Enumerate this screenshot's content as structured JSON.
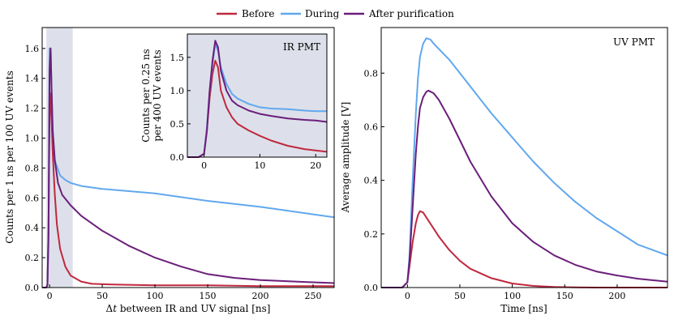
{
  "legend": {
    "items": [
      {
        "label": "Before",
        "color": "#c0283e"
      },
      {
        "label": "During",
        "color": "#61a8ee"
      },
      {
        "label": "After purification",
        "color": "#6b1e7a"
      }
    ]
  },
  "chart_data": [
    {
      "id": "left",
      "type": "line",
      "title": "",
      "xlabel": "Δt between IR and UV signal [ns]",
      "xlabel_italic_part": "t",
      "ylabel": "Counts per 1 ns per 100 UV events",
      "xlim": [
        -7,
        270
      ],
      "ylim": [
        0,
        1.74
      ],
      "xticks": [
        0,
        50,
        100,
        150,
        200,
        250
      ],
      "yticks": [
        0.0,
        0.2,
        0.4,
        0.6,
        0.8,
        1.0,
        1.2,
        1.4,
        1.6
      ],
      "shaded_region": [
        -3,
        22
      ],
      "series": [
        {
          "name": "Before",
          "x": [
            -7,
            -3,
            -2,
            -1,
            0,
            1,
            2,
            3,
            5,
            7,
            10,
            15,
            20,
            30,
            40,
            60,
            100,
            150,
            200,
            270
          ],
          "y": [
            0,
            0,
            0.02,
            0.4,
            1.15,
            1.3,
            1.1,
            0.9,
            0.62,
            0.42,
            0.26,
            0.14,
            0.08,
            0.04,
            0.025,
            0.02,
            0.015,
            0.015,
            0.01,
            0.01
          ]
        },
        {
          "name": "During",
          "x": [
            -7,
            -3,
            -2,
            -1,
            0,
            1,
            2,
            3,
            5,
            10,
            15,
            20,
            25,
            30,
            50,
            100,
            150,
            200,
            250,
            270
          ],
          "y": [
            0,
            0,
            0.02,
            0.3,
            1.6,
            1.6,
            1.3,
            1.05,
            0.85,
            0.75,
            0.72,
            0.7,
            0.69,
            0.68,
            0.66,
            0.63,
            0.58,
            0.54,
            0.49,
            0.47
          ]
        },
        {
          "name": "After purification",
          "x": [
            -7,
            -3,
            -2,
            -1,
            0,
            1,
            2,
            3,
            5,
            8,
            12,
            20,
            30,
            50,
            75,
            100,
            125,
            150,
            175,
            200,
            250,
            270
          ],
          "y": [
            0,
            0,
            0.02,
            0.35,
            1.45,
            1.6,
            1.3,
            1.05,
            0.85,
            0.7,
            0.62,
            0.55,
            0.48,
            0.38,
            0.28,
            0.2,
            0.14,
            0.09,
            0.065,
            0.05,
            0.035,
            0.03
          ]
        }
      ]
    },
    {
      "id": "inset",
      "type": "line",
      "title": "IR PMT",
      "xlabel": "",
      "ylabel": "Counts per 0.25 ns per 400 UV events",
      "ylabel_lines": [
        "Counts per 0.25 ns",
        "per 400 UV events"
      ],
      "xlim": [
        -3,
        22
      ],
      "ylim": [
        0,
        1.85
      ],
      "xticks": [
        0,
        10,
        20
      ],
      "yticks": [
        0.0,
        0.5,
        1.0,
        1.5
      ],
      "series": [
        {
          "name": "Before",
          "x": [
            -3,
            -1,
            0,
            0.5,
            1,
            1.5,
            2,
            2.5,
            3,
            4,
            5,
            6,
            8,
            10,
            12,
            15,
            18,
            20,
            22
          ],
          "y": [
            0,
            0,
            0.05,
            0.4,
            0.9,
            1.25,
            1.45,
            1.35,
            1.0,
            0.75,
            0.6,
            0.5,
            0.4,
            0.32,
            0.25,
            0.17,
            0.12,
            0.1,
            0.08
          ]
        },
        {
          "name": "During",
          "x": [
            -3,
            -1,
            0,
            0.5,
            1,
            1.5,
            2,
            2.5,
            3,
            4,
            5,
            6,
            8,
            10,
            12,
            15,
            18,
            20,
            22
          ],
          "y": [
            0,
            0,
            0.05,
            0.45,
            1.0,
            1.4,
            1.7,
            1.6,
            1.35,
            1.1,
            0.95,
            0.88,
            0.8,
            0.75,
            0.73,
            0.72,
            0.7,
            0.69,
            0.69
          ]
        },
        {
          "name": "After purification",
          "x": [
            -3,
            -1,
            0,
            0.5,
            1,
            1.5,
            2,
            2.5,
            3,
            4,
            5,
            6,
            8,
            10,
            12,
            15,
            18,
            20,
            22
          ],
          "y": [
            0,
            0,
            0.05,
            0.4,
            1.0,
            1.45,
            1.75,
            1.65,
            1.3,
            1.0,
            0.85,
            0.78,
            0.7,
            0.65,
            0.62,
            0.58,
            0.56,
            0.55,
            0.53
          ]
        }
      ]
    },
    {
      "id": "right",
      "type": "line",
      "title": "UV PMT",
      "xlabel": "Time [ns]",
      "ylabel": "Average amplitude [V]",
      "xlim": [
        -25,
        248
      ],
      "ylim": [
        0,
        0.97
      ],
      "xticks": [
        0,
        50,
        100,
        150,
        200
      ],
      "yticks": [
        0.0,
        0.2,
        0.4,
        0.6,
        0.8
      ],
      "series": [
        {
          "name": "Before",
          "x": [
            -25,
            -5,
            0,
            2,
            5,
            8,
            10,
            12,
            15,
            20,
            30,
            40,
            50,
            60,
            80,
            100,
            120,
            140,
            160,
            180,
            200,
            248
          ],
          "y": [
            0,
            0,
            0.02,
            0.08,
            0.17,
            0.24,
            0.27,
            0.285,
            0.28,
            0.25,
            0.19,
            0.14,
            0.1,
            0.07,
            0.035,
            0.015,
            0.006,
            0.002,
            0.001,
            0,
            0,
            0
          ]
        },
        {
          "name": "During",
          "x": [
            -25,
            -5,
            0,
            2,
            5,
            8,
            10,
            12,
            15,
            18,
            22,
            25,
            30,
            40,
            50,
            60,
            80,
            100,
            120,
            140,
            160,
            180,
            200,
            220,
            248
          ],
          "y": [
            0,
            0,
            0.02,
            0.12,
            0.4,
            0.65,
            0.78,
            0.86,
            0.91,
            0.93,
            0.925,
            0.91,
            0.89,
            0.85,
            0.8,
            0.75,
            0.65,
            0.56,
            0.47,
            0.39,
            0.32,
            0.26,
            0.21,
            0.16,
            0.12
          ]
        },
        {
          "name": "After purification",
          "x": [
            -25,
            -5,
            0,
            2,
            5,
            8,
            10,
            12,
            15,
            18,
            20,
            25,
            30,
            40,
            50,
            60,
            80,
            100,
            120,
            140,
            160,
            180,
            200,
            220,
            248
          ],
          "y": [
            0,
            0,
            0.02,
            0.1,
            0.3,
            0.5,
            0.6,
            0.67,
            0.71,
            0.73,
            0.735,
            0.725,
            0.7,
            0.63,
            0.55,
            0.47,
            0.34,
            0.24,
            0.17,
            0.12,
            0.085,
            0.06,
            0.045,
            0.033,
            0.022
          ]
        }
      ]
    }
  ]
}
